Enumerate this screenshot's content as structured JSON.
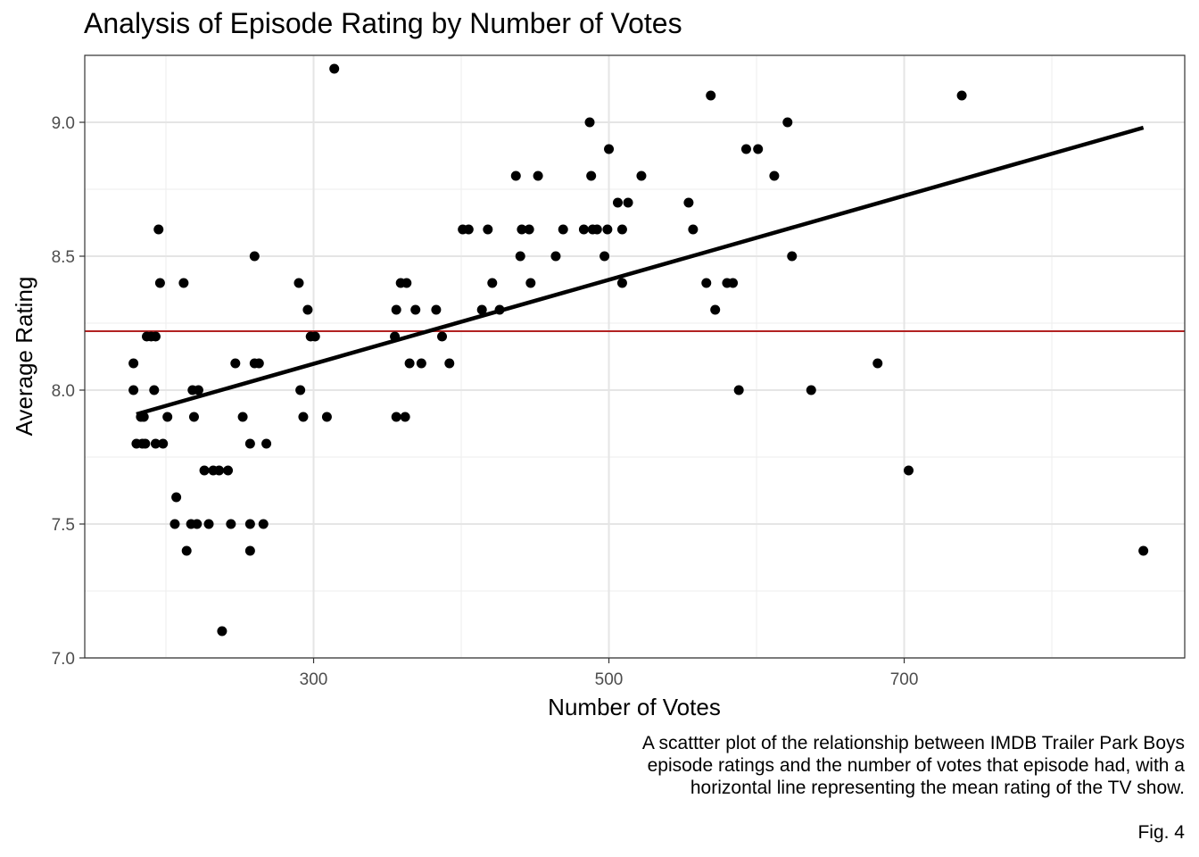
{
  "chart_data": {
    "type": "scatter",
    "title": "Analysis of Episode Rating by Number of Votes",
    "xlabel": "Number of Votes",
    "ylabel": "Average Rating",
    "xlim": [
      145,
      890
    ],
    "ylim": [
      7.0,
      9.25
    ],
    "x_ticks": [
      300,
      500,
      700
    ],
    "x_tick_labels": [
      "300",
      "500",
      "700"
    ],
    "y_ticks": [
      7.0,
      7.5,
      8.0,
      8.5,
      9.0
    ],
    "y_tick_labels": [
      "7.0",
      "7.5",
      "8.0",
      "8.5",
      "9.0"
    ],
    "grid": true,
    "point_color": "#000000",
    "mean_line": {
      "y": 8.22,
      "color": "#b22222"
    },
    "trend_line": {
      "x": [
        180,
        862
      ],
      "y": [
        7.91,
        8.98
      ],
      "color": "#000000"
    },
    "points": [
      {
        "x": 178,
        "y": 8.1
      },
      {
        "x": 178,
        "y": 8.0
      },
      {
        "x": 180,
        "y": 7.8
      },
      {
        "x": 183,
        "y": 7.9
      },
      {
        "x": 184,
        "y": 7.8
      },
      {
        "x": 185,
        "y": 7.9
      },
      {
        "x": 186,
        "y": 7.8
      },
      {
        "x": 187,
        "y": 8.2
      },
      {
        "x": 190,
        "y": 8.2
      },
      {
        "x": 192,
        "y": 8.0
      },
      {
        "x": 193,
        "y": 8.2
      },
      {
        "x": 193,
        "y": 7.8
      },
      {
        "x": 195,
        "y": 8.6
      },
      {
        "x": 196,
        "y": 8.4
      },
      {
        "x": 198,
        "y": 7.8
      },
      {
        "x": 201,
        "y": 7.9
      },
      {
        "x": 206,
        "y": 7.5
      },
      {
        "x": 207,
        "y": 7.6
      },
      {
        "x": 212,
        "y": 8.4
      },
      {
        "x": 214,
        "y": 7.4
      },
      {
        "x": 217,
        "y": 7.5
      },
      {
        "x": 218,
        "y": 8.0
      },
      {
        "x": 219,
        "y": 7.9
      },
      {
        "x": 221,
        "y": 7.5
      },
      {
        "x": 222,
        "y": 8.0
      },
      {
        "x": 226,
        "y": 7.7
      },
      {
        "x": 229,
        "y": 7.5
      },
      {
        "x": 232,
        "y": 7.7
      },
      {
        "x": 236,
        "y": 7.7
      },
      {
        "x": 238,
        "y": 7.1
      },
      {
        "x": 242,
        "y": 7.7
      },
      {
        "x": 244,
        "y": 7.5
      },
      {
        "x": 247,
        "y": 8.1
      },
      {
        "x": 252,
        "y": 7.9
      },
      {
        "x": 257,
        "y": 7.8
      },
      {
        "x": 257,
        "y": 7.5
      },
      {
        "x": 257,
        "y": 7.4
      },
      {
        "x": 260,
        "y": 8.5
      },
      {
        "x": 260,
        "y": 8.1
      },
      {
        "x": 263,
        "y": 8.1
      },
      {
        "x": 266,
        "y": 7.5
      },
      {
        "x": 268,
        "y": 7.8
      },
      {
        "x": 290,
        "y": 8.4
      },
      {
        "x": 291,
        "y": 8.0
      },
      {
        "x": 293,
        "y": 7.9
      },
      {
        "x": 296,
        "y": 8.3
      },
      {
        "x": 298,
        "y": 8.2
      },
      {
        "x": 301,
        "y": 8.2
      },
      {
        "x": 309,
        "y": 7.9
      },
      {
        "x": 314,
        "y": 9.2
      },
      {
        "x": 355,
        "y": 8.2
      },
      {
        "x": 356,
        "y": 8.3
      },
      {
        "x": 356,
        "y": 7.9
      },
      {
        "x": 359,
        "y": 8.4
      },
      {
        "x": 362,
        "y": 7.9
      },
      {
        "x": 363,
        "y": 8.4
      },
      {
        "x": 365,
        "y": 8.1
      },
      {
        "x": 369,
        "y": 8.3
      },
      {
        "x": 373,
        "y": 8.1
      },
      {
        "x": 383,
        "y": 8.3
      },
      {
        "x": 387,
        "y": 8.2
      },
      {
        "x": 392,
        "y": 8.1
      },
      {
        "x": 401,
        "y": 8.6
      },
      {
        "x": 405,
        "y": 8.6
      },
      {
        "x": 414,
        "y": 8.3
      },
      {
        "x": 418,
        "y": 8.6
      },
      {
        "x": 421,
        "y": 8.4
      },
      {
        "x": 426,
        "y": 8.3
      },
      {
        "x": 437,
        "y": 8.8
      },
      {
        "x": 440,
        "y": 8.5
      },
      {
        "x": 441,
        "y": 8.6
      },
      {
        "x": 446,
        "y": 8.6
      },
      {
        "x": 447,
        "y": 8.4
      },
      {
        "x": 452,
        "y": 8.8
      },
      {
        "x": 464,
        "y": 8.5
      },
      {
        "x": 469,
        "y": 8.6
      },
      {
        "x": 483,
        "y": 8.6
      },
      {
        "x": 487,
        "y": 9.0
      },
      {
        "x": 488,
        "y": 8.8
      },
      {
        "x": 489,
        "y": 8.6
      },
      {
        "x": 492,
        "y": 8.6
      },
      {
        "x": 497,
        "y": 8.5
      },
      {
        "x": 499,
        "y": 8.6
      },
      {
        "x": 500,
        "y": 8.9
      },
      {
        "x": 506,
        "y": 8.7
      },
      {
        "x": 509,
        "y": 8.6
      },
      {
        "x": 509,
        "y": 8.4
      },
      {
        "x": 513,
        "y": 8.7
      },
      {
        "x": 522,
        "y": 8.8
      },
      {
        "x": 554,
        "y": 8.7
      },
      {
        "x": 557,
        "y": 8.6
      },
      {
        "x": 566,
        "y": 8.4
      },
      {
        "x": 569,
        "y": 9.1
      },
      {
        "x": 572,
        "y": 8.3
      },
      {
        "x": 580,
        "y": 8.4
      },
      {
        "x": 584,
        "y": 8.4
      },
      {
        "x": 588,
        "y": 8.0
      },
      {
        "x": 593,
        "y": 8.9
      },
      {
        "x": 601,
        "y": 8.9
      },
      {
        "x": 612,
        "y": 8.8
      },
      {
        "x": 621,
        "y": 9.0
      },
      {
        "x": 624,
        "y": 8.5
      },
      {
        "x": 637,
        "y": 8.0
      },
      {
        "x": 682,
        "y": 8.1
      },
      {
        "x": 703,
        "y": 7.7
      },
      {
        "x": 739,
        "y": 9.1
      },
      {
        "x": 862,
        "y": 7.4
      }
    ]
  },
  "caption": {
    "lines": [
      "A scattter plot of the relationship between IMDB Trailer Park Boys",
      "episode ratings and the number of votes that episode had, with a",
      "horizontal line representing the mean rating of the TV show."
    ],
    "figure_label": "Fig. 4"
  }
}
